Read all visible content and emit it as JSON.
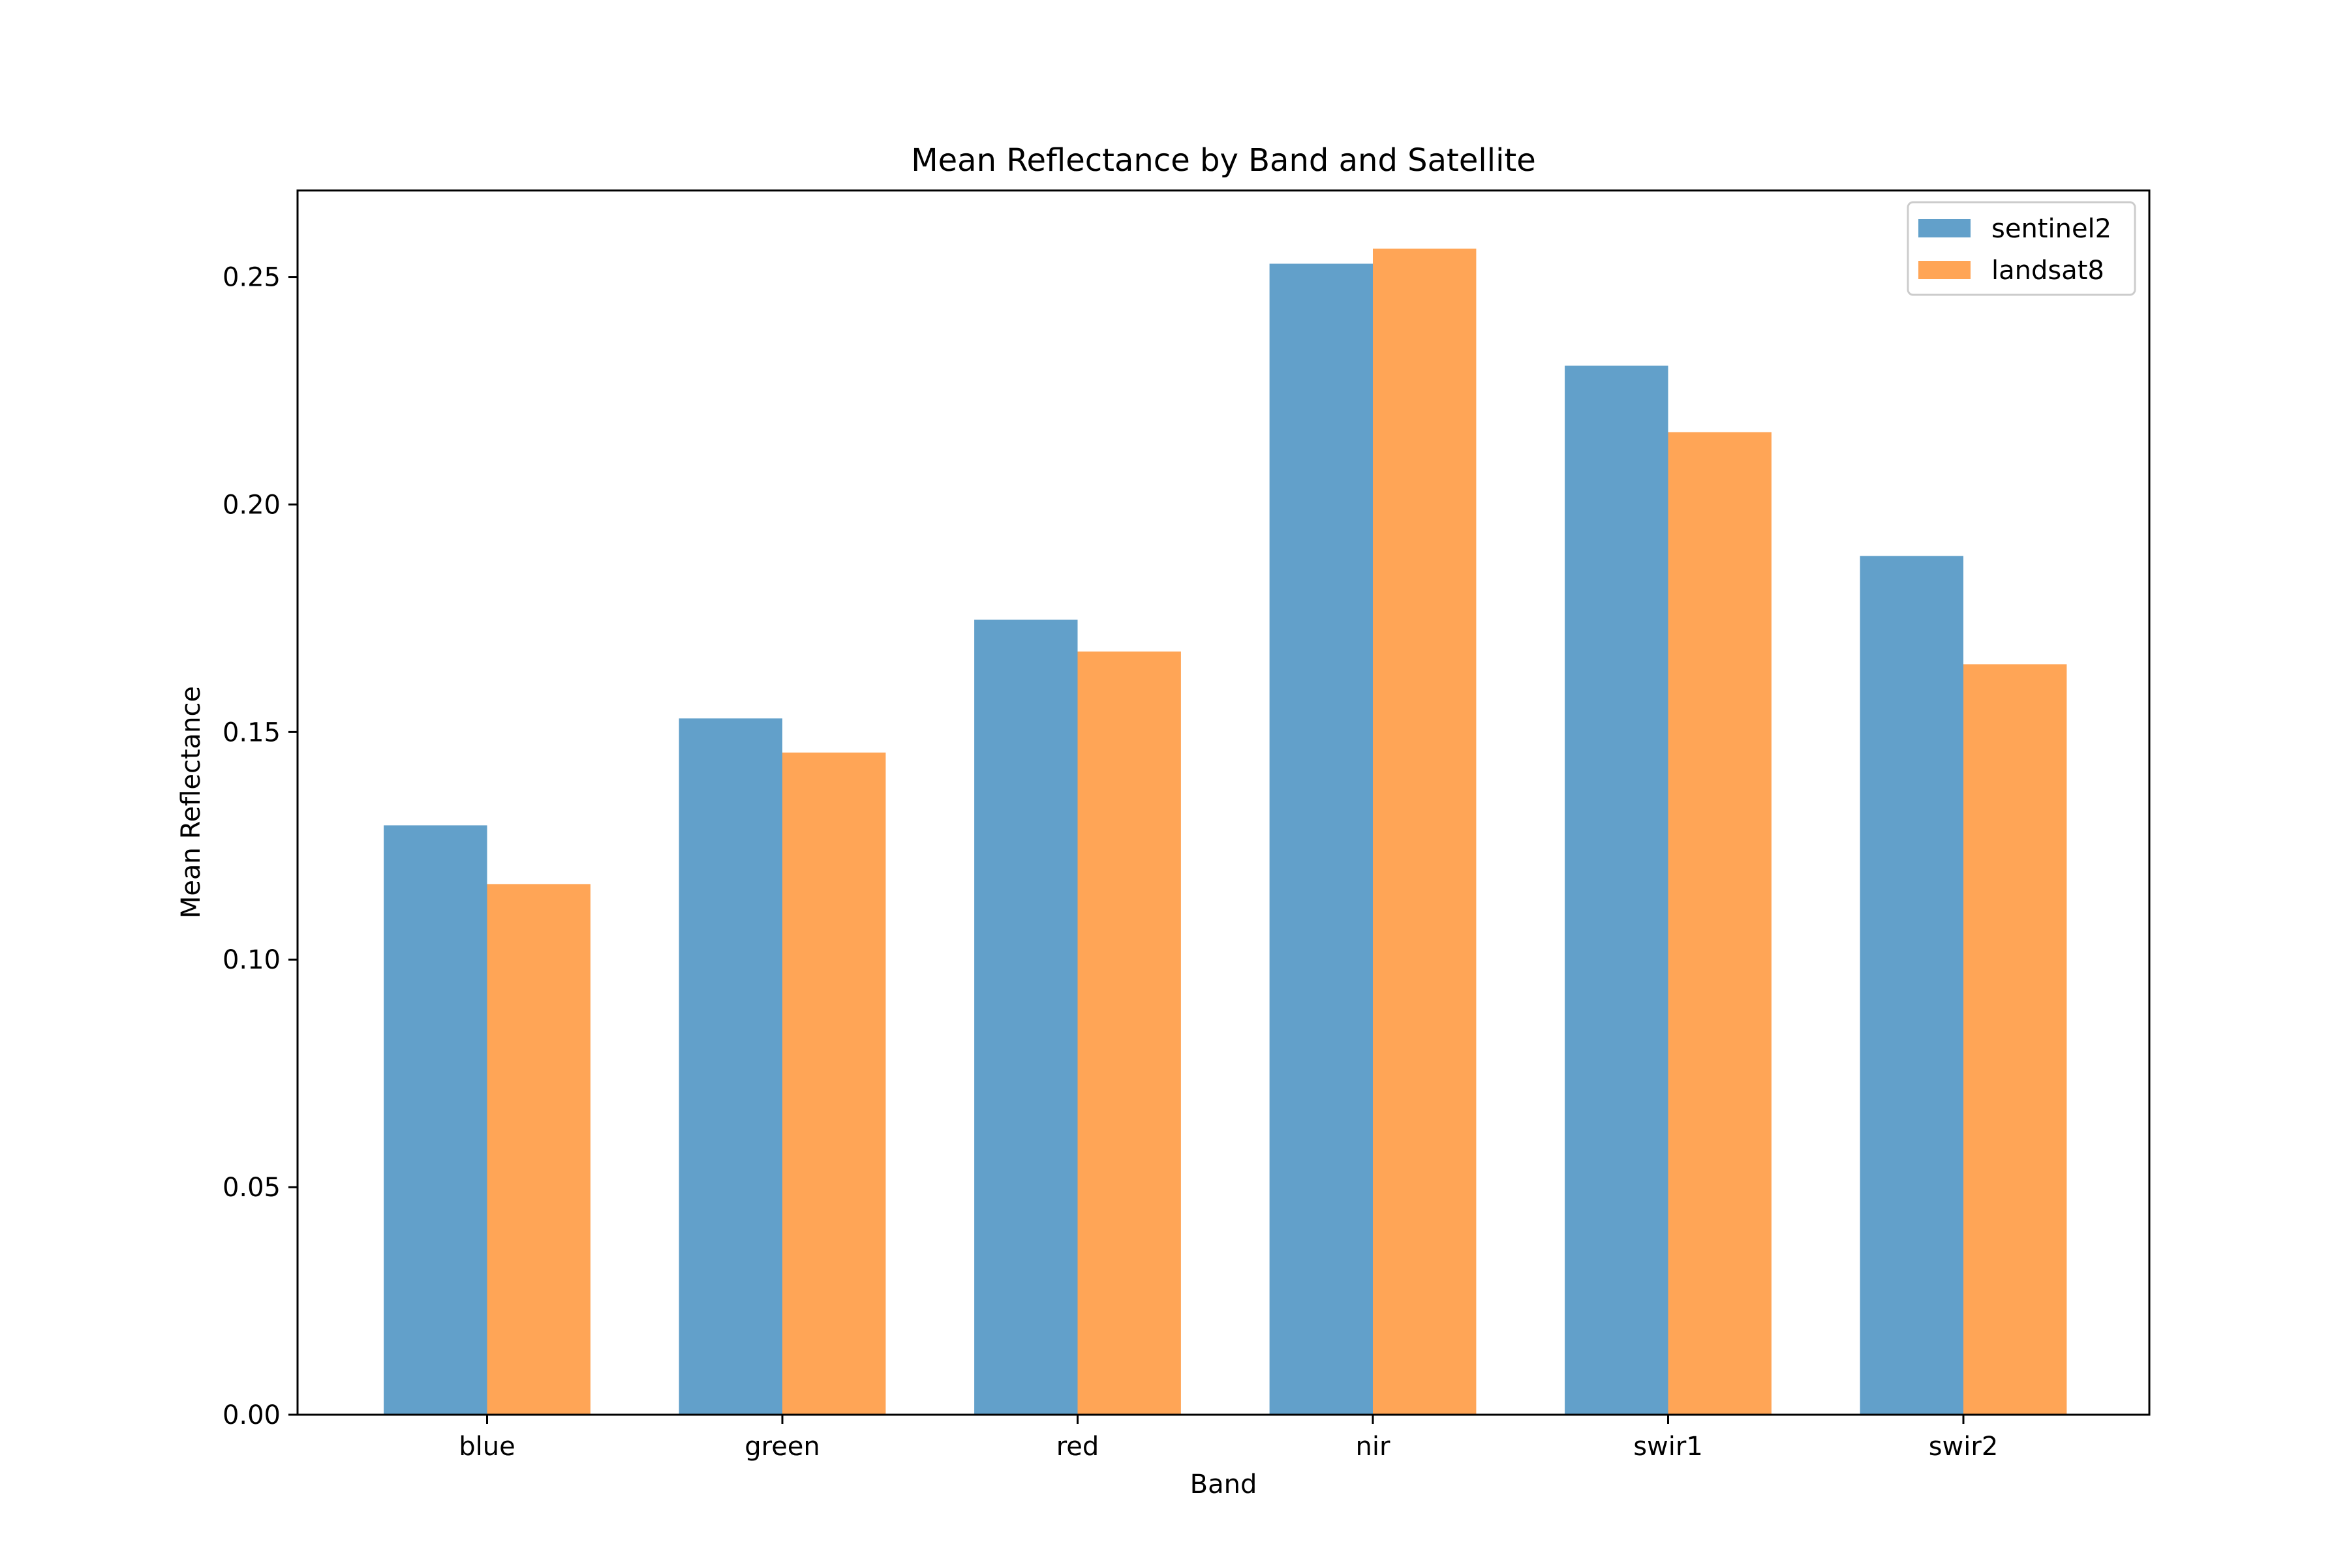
{
  "chart_data": {
    "type": "bar",
    "title": "Mean Reflectance by Band and Satellite",
    "xlabel": "Band",
    "ylabel": "Mean Reflectance",
    "categories": [
      "blue",
      "green",
      "red",
      "nir",
      "swir1",
      "swir2"
    ],
    "series": [
      {
        "name": "sentinel2",
        "color": "#1f77b4",
        "opacity": 0.7,
        "values": [
          0.1295,
          0.153,
          0.1747,
          0.2529,
          0.2305,
          0.1887
        ]
      },
      {
        "name": "landsat8",
        "color": "#ff7f0e",
        "opacity": 0.7,
        "values": [
          0.1166,
          0.1455,
          0.1677,
          0.2562,
          0.2159,
          0.1649
        ]
      }
    ],
    "ylim": [
      0,
      0.269
    ],
    "yticks": [
      0.0,
      0.05,
      0.1,
      0.15,
      0.2,
      0.25
    ],
    "ytick_labels": [
      "0.00",
      "0.05",
      "0.10",
      "0.15",
      "0.20",
      "0.25"
    ],
    "grid": false,
    "legend_position": "top-right"
  }
}
